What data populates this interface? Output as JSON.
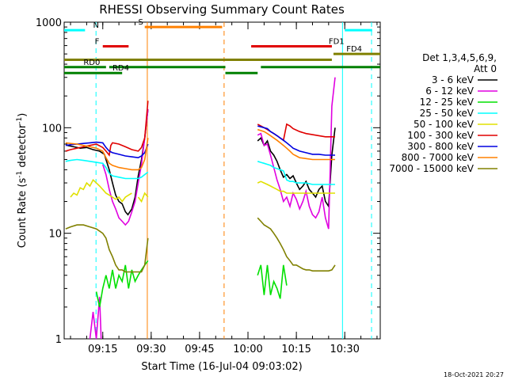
{
  "chart_data": {
    "type": "line",
    "title": "RHESSI Observing Summary Count Rates",
    "xlabel": "Start Time (16-Jul-04 09:03:02)",
    "ylabel_parts": {
      "before": "Count Rate (s",
      "sup": "-1",
      "after": " detector",
      "sup2": "-1",
      "close": ")"
    },
    "yscale": "log",
    "ylim": [
      1,
      1000
    ],
    "xlim_minutes": [
      3.03,
      101
    ],
    "x_ticks": [
      {
        "label": "09:15",
        "value": 15
      },
      {
        "label": "09:30",
        "value": 30
      },
      {
        "label": "09:45",
        "value": 45
      },
      {
        "label": "10:00",
        "value": 60
      },
      {
        "label": "10:15",
        "value": 75
      },
      {
        "label": "10:30",
        "value": 90
      }
    ],
    "y_ticks": [
      {
        "label": "1",
        "value": 1
      },
      {
        "label": "10",
        "value": 10
      },
      {
        "label": "100",
        "value": 100
      },
      {
        "label": "1000",
        "value": 1000
      }
    ],
    "legend": {
      "header1": "Det 1,3,4,5,6,9,",
      "header2": "Att 0",
      "position": "right"
    },
    "series": [
      {
        "name": "3 - 6 keV",
        "color": "#000000",
        "segments": [
          {
            "x": [
              4,
              6,
              8,
              10,
              12,
              14,
              15.5,
              16,
              17,
              18,
              19,
              20,
              21,
              22,
              22.8,
              24,
              25,
              26,
              27,
              28,
              29
            ],
            "y": [
              68,
              66,
              64,
              65,
              62,
              60,
              56,
              50,
              40,
              30,
              23,
              20,
              19,
              16,
              15,
              17,
              22,
              35,
              50,
              80,
              150
            ]
          },
          {
            "x": [
              63,
              64,
              65,
              66,
              67,
              68,
              69,
              70,
              71,
              72,
              73,
              74,
              75,
              76,
              77,
              78,
              79,
              80,
              81,
              82,
              83,
              84,
              85,
              86,
              87
            ],
            "y": [
              75,
              80,
              68,
              75,
              60,
              55,
              48,
              40,
              34,
              36,
              33,
              35,
              30,
              26,
              28,
              31,
              26,
              24,
              22,
              26,
              28,
              20,
              18,
              55,
              100
            ]
          }
        ]
      },
      {
        "name": "6 - 12 keV",
        "color": "#e000e0",
        "segments": [
          {
            "x": [
              11,
              12,
              13,
              14,
              14.5
            ],
            "y": [
              1,
              1.8,
              1,
              2.5,
              1
            ]
          },
          {
            "x": [
              15,
              16,
              17,
              18,
              19,
              20,
              21,
              22,
              23,
              24,
              25,
              26,
              27,
              28,
              29
            ],
            "y": [
              45,
              36,
              26,
              20,
              17,
              14,
              13,
              12,
              13,
              16,
              20,
              30,
              45,
              80,
              150
            ]
          },
          {
            "x": [
              63,
              64,
              65,
              66,
              67,
              68,
              69,
              70,
              71,
              72,
              73,
              74,
              75,
              76,
              77,
              78,
              79,
              80,
              81,
              82,
              83,
              84,
              85,
              86,
              87
            ],
            "y": [
              85,
              88,
              68,
              70,
              55,
              42,
              32,
              26,
              20,
              22,
              18,
              24,
              21,
              17,
              20,
              25,
              18,
              15,
              14,
              16,
              22,
              14,
              11,
              160,
              300
            ]
          }
        ]
      },
      {
        "name": "12 - 25 keV",
        "color": "#00e000",
        "segments": [
          {
            "x": [
              13,
              14,
              15,
              16,
              17,
              18,
              19,
              20,
              21,
              22,
              23,
              24,
              25,
              26,
              27,
              28,
              29
            ],
            "y": [
              2.8,
              2,
              3,
              4,
              3,
              4.5,
              3,
              4,
              3.5,
              5,
              3,
              4.5,
              3.5,
              4,
              4.5,
              5,
              5.5
            ]
          },
          {
            "x": [
              63,
              64,
              65,
              66,
              67,
              68,
              69,
              70,
              71,
              72
            ],
            "y": [
              4,
              5,
              2.6,
              5,
              2.6,
              3.5,
              3,
              2.4,
              5,
              3.2
            ]
          }
        ]
      },
      {
        "name": "25 - 50 keV",
        "color": "#00ffff",
        "segments": [
          {
            "x": [
              3.5,
              5,
              7,
              9,
              11,
              13,
              15,
              16,
              17,
              18,
              20,
              22,
              24,
              26,
              27,
              28,
              29
            ],
            "y": [
              48,
              49,
              50,
              49,
              48,
              47,
              46,
              42,
              37,
              35,
              34,
              33,
              33,
              33,
              34,
              36,
              38
            ]
          },
          {
            "x": [
              63,
              64,
              65,
              66,
              67,
              68,
              69,
              70,
              71,
              72,
              73,
              74,
              75,
              76,
              78,
              80,
              82,
              84,
              86,
              87
            ],
            "y": [
              48,
              47,
              46,
              45,
              44,
              42,
              41,
              40,
              39,
              32,
              31,
              31,
              30,
              30,
              30,
              29,
              29,
              29,
              29,
              29
            ]
          }
        ]
      },
      {
        "name": "50 - 100 keV",
        "color": "#e0e000",
        "segments": [
          {
            "x": [
              5,
              6,
              7,
              8,
              9,
              10,
              11,
              12,
              13,
              14,
              15,
              16,
              17,
              18,
              19,
              20,
              21,
              22,
              23,
              24
            ],
            "y": [
              22,
              24,
              23,
              27,
              26,
              30,
              28,
              32,
              30,
              28,
              26,
              24,
              23,
              22,
              21,
              22,
              20,
              22,
              23,
              24
            ]
          },
          {
            "x": [
              26,
              27,
              28,
              29
            ],
            "y": [
              22,
              20,
              24,
              22
            ]
          },
          {
            "x": [
              63,
              64,
              65,
              66,
              67,
              68,
              69,
              70,
              71,
              72,
              73,
              74,
              75,
              76,
              78,
              80,
              82,
              84,
              86,
              87
            ],
            "y": [
              30,
              31,
              30,
              29,
              28,
              27,
              26,
              25,
              25,
              24,
              24,
              24,
              24,
              24,
              24,
              24,
              24,
              24,
              24,
              24
            ]
          }
        ]
      },
      {
        "name": "100 - 300 keV",
        "color": "#e00000",
        "segments": [
          {
            "x": [
              3.5,
              5,
              7,
              9,
              11,
              13,
              15,
              16,
              17,
              17.5,
              18,
              20,
              22,
              24,
              26,
              27,
              28,
              29
            ],
            "y": [
              60,
              62,
              64,
              66,
              68,
              70,
              65,
              60,
              55,
              68,
              72,
              70,
              66,
              62,
              60,
              65,
              80,
              180
            ]
          },
          {
            "x": [
              63,
              64,
              65,
              66,
              67,
              68,
              69,
              70,
              71,
              72,
              73,
              74,
              76,
              78,
              80,
              82,
              84,
              86,
              87
            ],
            "y": [
              108,
              104,
              100,
              96,
              92,
              88,
              84,
              80,
              76,
              108,
              104,
              98,
              92,
              88,
              86,
              84,
              82,
              82,
              82
            ]
          }
        ]
      },
      {
        "name": "300 - 800 keV",
        "color": "#0000e0",
        "segments": [
          {
            "x": [
              3.5,
              5,
              7,
              9,
              11,
              13,
              15,
              16,
              17,
              18,
              20,
              22,
              24,
              26,
              27,
              28,
              29
            ],
            "y": [
              68,
              69,
              70,
              71,
              72,
              73,
              72,
              65,
              60,
              58,
              56,
              54,
              53,
              52,
              54,
              58,
              70
            ]
          },
          {
            "x": [
              63,
              64,
              65,
              66,
              67,
              68,
              69,
              70,
              71,
              72,
              73,
              74,
              75,
              76,
              78,
              80,
              82,
              84,
              86,
              87
            ],
            "y": [
              104,
              102,
              100,
              98,
              92,
              88,
              84,
              80,
              76,
              72,
              68,
              64,
              62,
              60,
              58,
              56,
              56,
              55,
              55,
              55
            ]
          }
        ]
      },
      {
        "name": "800 - 7000 keV",
        "color": "#ff8000",
        "segments": [
          {
            "x": [
              3.5,
              5,
              7,
              9,
              11,
              13,
              15,
              16,
              17,
              18,
              20,
              22,
              24,
              26,
              27,
              28,
              29
            ],
            "y": [
              72,
              71,
              70,
              68,
              66,
              64,
              60,
              52,
              46,
              44,
              42,
              41,
              40,
              40,
              42,
              50,
              80
            ]
          },
          {
            "x": [
              63,
              64,
              65,
              66,
              67,
              68,
              69,
              70,
              71,
              72,
              73,
              74,
              75,
              76,
              78,
              80,
              82,
              84,
              86,
              87
            ],
            "y": [
              96,
              94,
              92,
              88,
              84,
              80,
              76,
              72,
              68,
              64,
              60,
              56,
              54,
              52,
              51,
              50,
              50,
              50,
              50,
              50
            ]
          }
        ]
      },
      {
        "name": "7000 - 15000 keV",
        "color": "#808000",
        "segments": [
          {
            "x": [
              3.5,
              5,
              7,
              9,
              11,
              13,
              15,
              16,
              17,
              18,
              19,
              20,
              21,
              22,
              23,
              24,
              25,
              26,
              27,
              28,
              29
            ],
            "y": [
              11,
              11.5,
              12,
              12,
              11.5,
              11,
              10,
              9,
              7,
              6,
              5,
              4.5,
              4.5,
              4.3,
              4.3,
              4.3,
              4.3,
              4.3,
              4.3,
              5,
              9
            ]
          },
          {
            "x": [
              63,
              64,
              65,
              66,
              67,
              68,
              69,
              70,
              71,
              72,
              73,
              74,
              75,
              76,
              77,
              78,
              79,
              80,
              81,
              82,
              83,
              84,
              85,
              86,
              87
            ],
            "y": [
              14,
              13,
              12,
              11.5,
              11,
              10,
              9,
              8,
              7,
              6,
              5.5,
              5,
              5,
              4.8,
              4.6,
              4.5,
              4.5,
              4.4,
              4.4,
              4.4,
              4.4,
              4.4,
              4.4,
              4.5,
              5
            ]
          }
        ]
      }
    ],
    "flag_bars": [
      {
        "label": "N",
        "color": "#00ffff",
        "y": 840,
        "x": [
          3.03,
          9.5
        ],
        "label_x": 12
      },
      {
        "label": "",
        "color": "#00ffff",
        "y": 840,
        "x": [
          90,
          98.5
        ],
        "label_x": null
      },
      {
        "label": "S",
        "color": "#ff8000",
        "y": 900,
        "x": [
          28,
          52
        ],
        "label_x": 26
      },
      {
        "label": "F",
        "color": "#e00000",
        "y": 590,
        "x": [
          15,
          23
        ],
        "label_x": 12.5
      },
      {
        "label": "FD1",
        "color": "#e00000",
        "y": 590,
        "x": [
          61,
          86
        ],
        "label_x": 85
      },
      {
        "label": "FD4",
        "color": "#808000",
        "y": 500,
        "x": [
          86.5,
          101
        ],
        "label_x": 90.5
      },
      {
        "label": "",
        "color": "#808000",
        "y": 440,
        "x": [
          3.03,
          86
        ],
        "label_x": null
      },
      {
        "label": "RD0",
        "color": "#008000",
        "y": 375,
        "x": [
          3.03,
          16
        ],
        "label_x": 9
      },
      {
        "label": "",
        "color": "#008000",
        "y": 375,
        "x": [
          17,
          53
        ],
        "label_x": null
      },
      {
        "label": "",
        "color": "#008000",
        "y": 375,
        "x": [
          64,
          101
        ],
        "label_x": null
      },
      {
        "label": "RD4",
        "color": "#008000",
        "y": 330,
        "x": [
          3.03,
          21
        ],
        "label_x": 18
      },
      {
        "label": "",
        "color": "#008000",
        "y": 330,
        "x": [
          53,
          63
        ],
        "label_x": null
      }
    ],
    "vlines": [
      {
        "x": 12.9,
        "color": "#00ffff",
        "dash": true
      },
      {
        "x": 28.8,
        "color": "#ff8000",
        "dash": false
      },
      {
        "x": 52.6,
        "color": "#ff8000",
        "dash": true
      },
      {
        "x": 89.3,
        "color": "#00ffff",
        "dash": false
      },
      {
        "x": 98.3,
        "color": "#00ffff",
        "dash": true
      }
    ]
  },
  "footer": {
    "timestamp": "18-Oct-2021 20:27"
  }
}
